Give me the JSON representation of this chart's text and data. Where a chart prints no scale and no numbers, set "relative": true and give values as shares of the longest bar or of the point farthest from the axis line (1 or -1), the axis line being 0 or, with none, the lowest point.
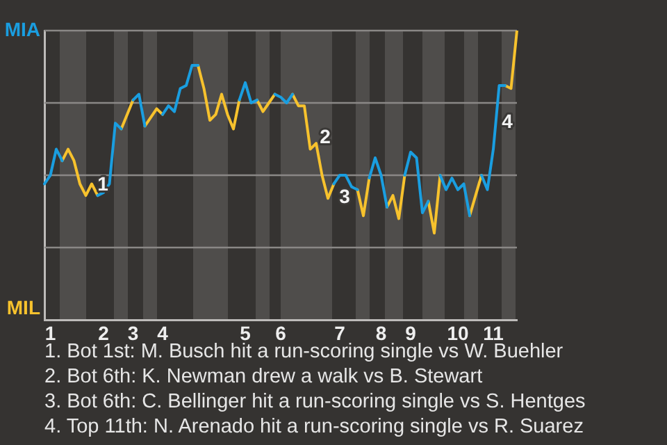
{
  "chart_data": {
    "type": "line",
    "relative": true,
    "categories": [
      null,
      "1",
      null,
      null,
      null,
      null,
      null,
      null,
      null,
      null,
      "2",
      null,
      null,
      null,
      null,
      "3",
      null,
      null,
      null,
      null,
      "4",
      null,
      null,
      null,
      null,
      null,
      null,
      null,
      null,
      null,
      null,
      null,
      null,
      null,
      "5",
      null,
      null,
      null,
      null,
      null,
      "6",
      null,
      null,
      null,
      null,
      null,
      null,
      null,
      null,
      null,
      "7",
      null,
      null,
      null,
      null,
      null,
      null,
      "8",
      null,
      null,
      null,
      null,
      "9",
      null,
      null,
      null,
      null,
      null,
      null,
      null,
      "10",
      null,
      null,
      null,
      null,
      null,
      "11",
      null,
      null,
      null,
      null
    ],
    "legend": false,
    "marker": "none",
    "series": [
      {
        "color": "#1a9ee0",
        "values": [
          0.47,
          0.5,
          0.59,
          0.55,
          null,
          null,
          null,
          null,
          null,
          0.43,
          0.44,
          0.47,
          0.68,
          0.66,
          null,
          0.76,
          0.78,
          0.67,
          null,
          null,
          0.71,
          0.74,
          0.72,
          0.8,
          0.81,
          0.88,
          0.88,
          null,
          null,
          null,
          null,
          null,
          null,
          0.76,
          0.82,
          0.75,
          0.76,
          null,
          null,
          0.78,
          0.77,
          0.75,
          0.78,
          null,
          null,
          null,
          null,
          null,
          null,
          0.47,
          0.5,
          0.5,
          0.46,
          0.45,
          null,
          0.49,
          0.56,
          0.5,
          0.39,
          null,
          null,
          0.5,
          0.58,
          0.56,
          0.37,
          0.41,
          null,
          0.5,
          0.45,
          0.49,
          0.45,
          0.47,
          0.36,
          null,
          0.5,
          0.45,
          0.59,
          0.81,
          0.81,
          null,
          null
        ],
        "line_style": "solid"
      },
      {
        "color": "#f7c22d",
        "values": [
          null,
          null,
          null,
          0.55,
          0.59,
          0.55,
          0.47,
          0.43,
          0.47,
          0.43,
          null,
          null,
          null,
          0.66,
          0.71,
          0.76,
          null,
          0.67,
          0.7,
          0.73,
          0.71,
          null,
          null,
          null,
          null,
          null,
          0.88,
          0.8,
          0.69,
          0.71,
          0.78,
          0.71,
          0.66,
          0.76,
          null,
          null,
          0.76,
          0.72,
          0.75,
          0.78,
          null,
          null,
          0.78,
          0.74,
          0.74,
          0.59,
          0.61,
          0.5,
          0.42,
          0.47,
          null,
          null,
          null,
          0.45,
          0.36,
          0.49,
          null,
          null,
          0.39,
          0.43,
          0.35,
          0.5,
          null,
          null,
          null,
          0.41,
          0.3,
          0.5,
          null,
          null,
          null,
          null,
          0.36,
          0.43,
          0.5,
          null,
          null,
          null,
          0.81,
          0.8,
          1
        ],
        "line_style": "solid"
      }
    ],
    "ref_lines": [
      {
        "axis": "y",
        "value": 1,
        "color": "#8a8886"
      },
      {
        "axis": "y",
        "value": 0.75,
        "color": "#8a8886"
      },
      {
        "axis": "y",
        "value": 0.5,
        "color": "#8a8886"
      },
      {
        "axis": "y",
        "value": 0.25,
        "color": "#8a8886"
      }
    ],
    "annotations": [
      "MIA",
      "MIL",
      "1",
      "2",
      "3",
      "4",
      "1. Bot 1st: M. Busch hit a run-scoring single vs W. Buehler",
      "2. Bot 6th: K. Newman drew a walk vs B. Stewart",
      "3. Bot 6th: C. Bellinger hit a run-scoring single vs S. Hentges",
      "4. Top 11th: N. Arenado hit a run-scoring single vs R. Suarez"
    ]
  }
}
